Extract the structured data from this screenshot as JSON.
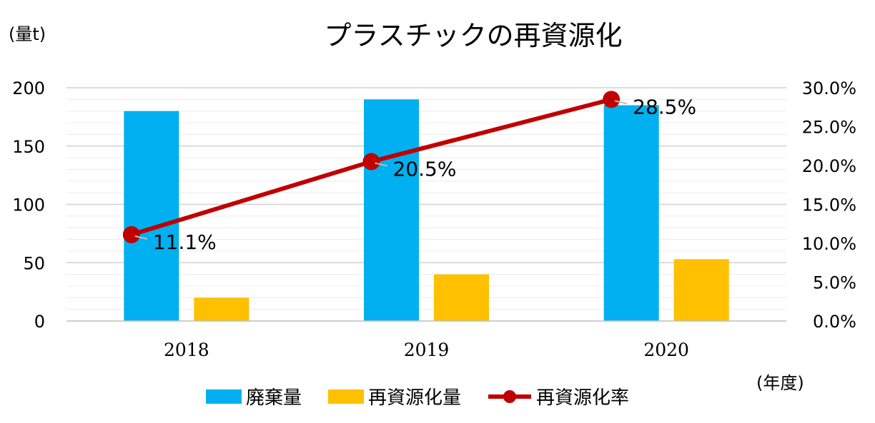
{
  "chart_data": {
    "type": "bar",
    "title": "プラスチックの再資源化",
    "ylabel": "(量t)",
    "xlabel": "(年度)",
    "categories": [
      "2018",
      "2019",
      "2020"
    ],
    "ylim": [
      0,
      200
    ],
    "y_ticks": [
      "0",
      "50",
      "100",
      "150",
      "200"
    ],
    "y2lim": [
      0,
      30
    ],
    "y2_ticks": [
      "0.0%",
      "5.0%",
      "10.0%",
      "15.0%",
      "20.0%",
      "25.0%",
      "30.0%"
    ],
    "grid": true,
    "legend_position": "bottom",
    "series": [
      {
        "name": "廃棄量",
        "type": "bar",
        "axis": "left",
        "color": "#00B0F0",
        "values": [
          180,
          190,
          185
        ]
      },
      {
        "name": "再資源化量",
        "type": "bar",
        "axis": "left",
        "color": "#FFC000",
        "values": [
          20,
          40,
          53
        ]
      },
      {
        "name": "再資源化率",
        "type": "line",
        "axis": "right",
        "color": "#C00000",
        "values": [
          11.1,
          20.5,
          28.5
        ],
        "labels": [
          "11.1%",
          "20.5%",
          "28.5%"
        ]
      }
    ]
  }
}
